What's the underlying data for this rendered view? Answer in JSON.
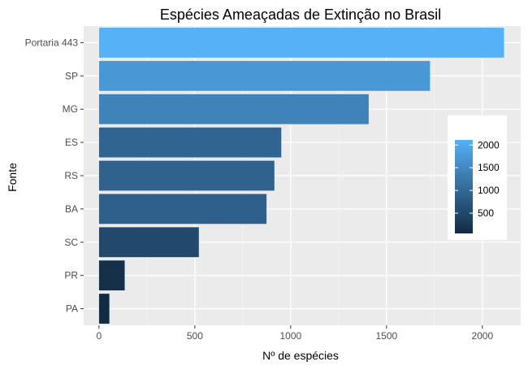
{
  "chart_data": {
    "type": "bar",
    "orientation": "horizontal",
    "title": "Espécies Ameaçadas de Extinção no Brasil",
    "xlabel": "Nº de espécies",
    "ylabel": "Fonte",
    "categories": [
      "Portaria 443",
      "SP",
      "MG",
      "ES",
      "RS",
      "BA",
      "SC",
      "PR",
      "PA"
    ],
    "values": [
      2113,
      1727,
      1407,
      951,
      915,
      874,
      521,
      134,
      54
    ],
    "xlim": [
      -80,
      2200
    ],
    "x_ticks": [
      0,
      500,
      1000,
      1500,
      2000
    ],
    "x_tick_labels": [
      "0",
      "500",
      "1000",
      "1500",
      "2000"
    ],
    "grid": true,
    "legend": {
      "placement": "right-inside",
      "type": "colorbar",
      "ticks": [
        500,
        1000,
        1500,
        2000
      ],
      "tick_labels": [
        "500",
        "1000",
        "1500",
        "2000"
      ],
      "range": [
        54,
        2113
      ]
    },
    "colors": {
      "low": "#132B43",
      "high": "#56B1F7",
      "panel_background": "#EBEBEB",
      "grid_major": "#FFFFFF",
      "grid_minor": "#F5F5F5"
    }
  }
}
